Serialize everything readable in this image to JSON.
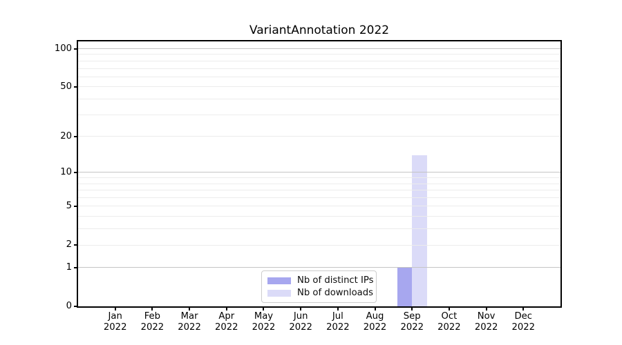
{
  "title": "VariantAnnotation 2022",
  "chart_data": {
    "type": "bar",
    "title": "VariantAnnotation 2022",
    "categories": [
      "Jan",
      "Feb",
      "Mar",
      "Apr",
      "May",
      "Jun",
      "Jul",
      "Aug",
      "Sep",
      "Oct",
      "Nov",
      "Dec"
    ],
    "category_year": "2022",
    "series": [
      {
        "name": "Nb of distinct IPs",
        "color": "#a7a7ef",
        "values": [
          0,
          0,
          0,
          0,
          0,
          0,
          0,
          0,
          1,
          0,
          0,
          0
        ]
      },
      {
        "name": "Nb of downloads",
        "color": "#dbdbf8",
        "values": [
          0,
          0,
          0,
          0,
          0,
          0,
          0,
          0,
          14,
          0,
          0,
          0
        ]
      }
    ],
    "yscale": "log1p",
    "ylim": [
      0,
      113
    ],
    "y_ticks": [
      0,
      1,
      2,
      5,
      10,
      20,
      50,
      100
    ],
    "grid_major": [
      1,
      10,
      100
    ],
    "grid_minor": [
      2,
      3,
      4,
      5,
      6,
      7,
      8,
      9,
      20,
      30,
      40,
      50,
      60,
      70,
      80,
      90
    ],
    "legend_position": "lower center",
    "grid": "horizontal only",
    "xlabel": "",
    "ylabel": ""
  },
  "colors": {
    "background": "#ffffff",
    "spine": "#000000",
    "grid_major": "#c4c4c4",
    "grid_minor": "#ececec",
    "text": "#000000",
    "legend_border": "#cccccc"
  }
}
